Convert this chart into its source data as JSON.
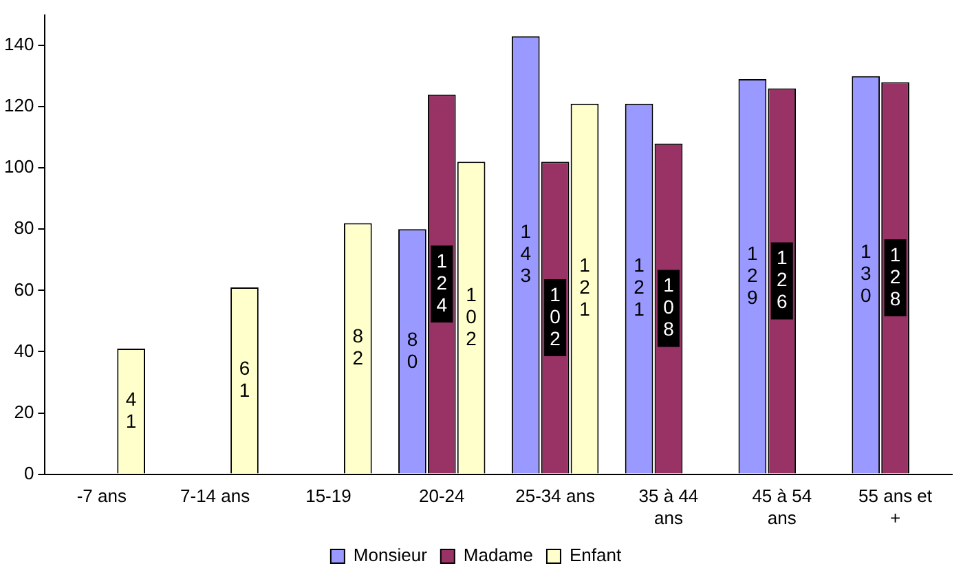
{
  "chart_data": {
    "type": "bar",
    "categories": [
      "-7 ans",
      "7-14 ans",
      "15-19",
      "20-24",
      "25-34 ans",
      "35 à 44 ans",
      "45 à 54 ans",
      "55 ans et +"
    ],
    "series": [
      {
        "name": "Monsieur",
        "color": "#9999ff",
        "values": [
          null,
          null,
          null,
          80,
          143,
          121,
          129,
          130
        ]
      },
      {
        "name": "Madame",
        "color": "#993366",
        "values": [
          null,
          null,
          null,
          124,
          102,
          108,
          126,
          128
        ]
      },
      {
        "name": "Enfant",
        "color": "#ffffcc",
        "values": [
          41,
          61,
          82,
          102,
          121,
          null,
          null,
          null
        ]
      }
    ],
    "ylim": [
      0,
      150
    ],
    "yticks": [
      0,
      20,
      40,
      60,
      80,
      100,
      120,
      140
    ],
    "grid": false,
    "legend": "bottom",
    "data_labels": true
  }
}
